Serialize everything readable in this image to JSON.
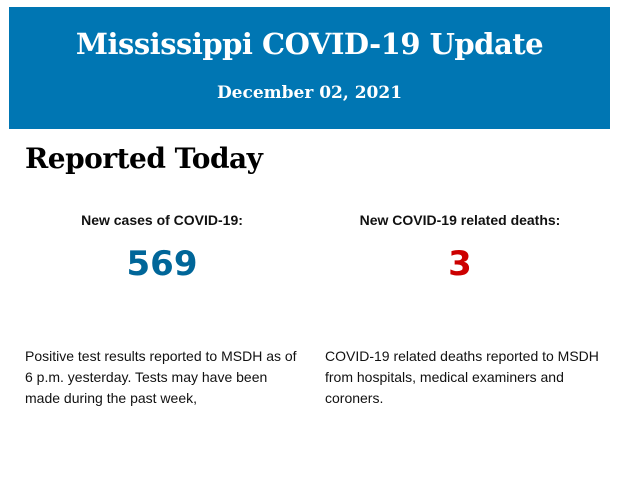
{
  "header": {
    "title": "Mississippi COVID-19 Update",
    "date": "December 02, 2021",
    "background_color": "#0076b3"
  },
  "section_title": "Reported Today",
  "cases": {
    "label": "New cases of COVID-19:",
    "value": "569",
    "color": "#006699",
    "description": "Positive test results reported to MSDH as of 6 p.m. yesterday. Tests may have been made during the past week,"
  },
  "deaths": {
    "label": "New COVID-19 related deaths:",
    "value": "3",
    "color": "#cc0000",
    "description": "COVID-19 related deaths reported to MSDH from hospitals, medical examiners and coroners."
  }
}
